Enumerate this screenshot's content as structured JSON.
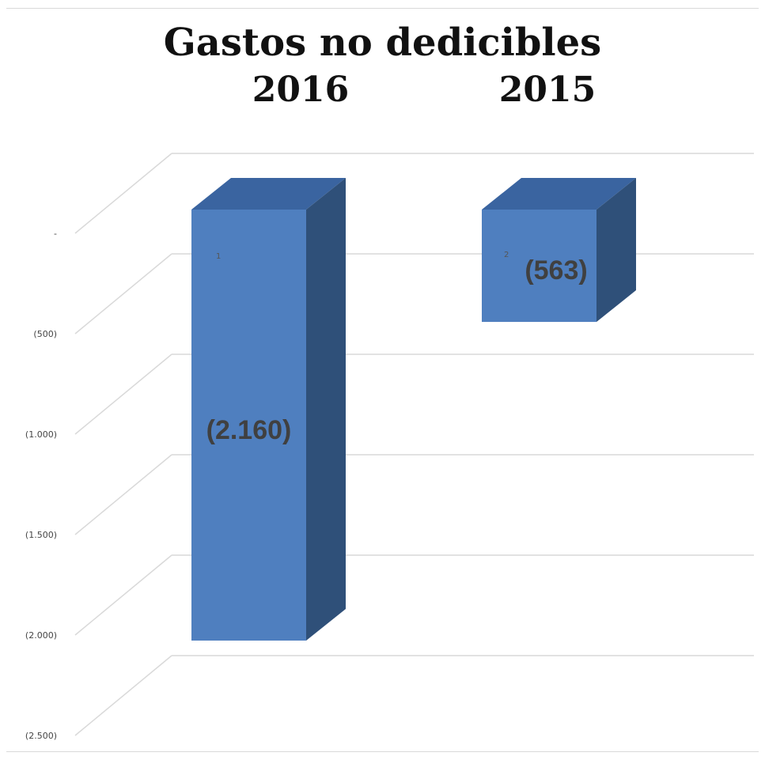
{
  "chart_data": {
    "type": "bar",
    "title": "Gastos no dedicibles",
    "categories": [
      "2016",
      "2015"
    ],
    "values": [
      -2160,
      -563
    ],
    "value_labels": [
      "(2.160)",
      "(563)"
    ],
    "index_labels": [
      "1",
      "2"
    ],
    "yticks": [
      0,
      -500,
      -1000,
      -1500,
      -2000,
      -2500
    ],
    "ytick_labels": [
      "-",
      "(500)",
      "(1.000)",
      "(1.500)",
      "(2.000)",
      "(2.500)"
    ],
    "ylim": [
      -2500,
      0
    ],
    "grid": true,
    "style": "3d-column",
    "colors": {
      "front": "#4f7fbf",
      "top": "#3a64a0",
      "side": "#2f5079",
      "grid": "#d9d9d9"
    }
  }
}
